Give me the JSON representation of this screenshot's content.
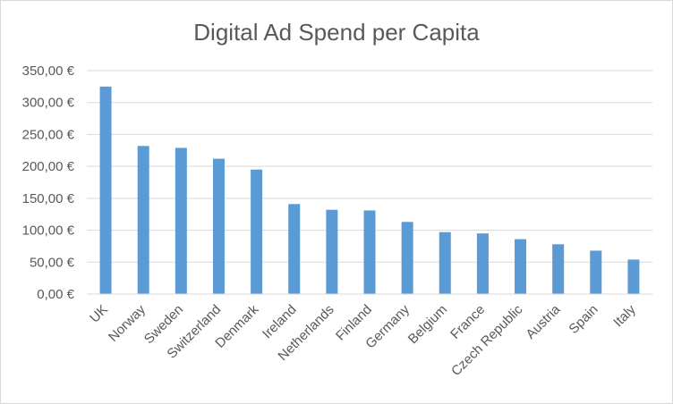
{
  "chart_data": {
    "type": "bar",
    "title": "Digital Ad Spend per Capita",
    "xlabel": "",
    "ylabel": "",
    "categories": [
      "UK",
      "Norway",
      "Sweden",
      "Switzerland",
      "Denmark",
      "Ireland",
      "Netherlands",
      "Finland",
      "Germany",
      "Belgium",
      "France",
      "Czech Republic",
      "Austria",
      "Spain",
      "Italy"
    ],
    "values": [
      325,
      232,
      229,
      212,
      195,
      141,
      132,
      131,
      113,
      97,
      95,
      86,
      78,
      68,
      54
    ],
    "ylim": [
      0,
      350
    ],
    "y_ticks": [
      0,
      50,
      100,
      150,
      200,
      250,
      300,
      350
    ],
    "y_tick_labels": [
      "0,00 €",
      "50,00 €",
      "100,00 €",
      "150,00 €",
      "200,00 €",
      "250,00 €",
      "300,00 €",
      "350,00 €"
    ],
    "grid": true,
    "legend": "none",
    "bar_color": "#5b9bd5",
    "grid_color": "#d9d9d9"
  }
}
